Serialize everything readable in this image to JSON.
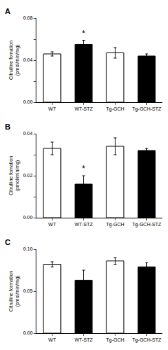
{
  "chart_data": [
    {
      "type": "bar",
      "title": "A",
      "categories": [
        "WT",
        "WT-STZ",
        "Tg-GCH",
        "Tg-GCH-STZ"
      ],
      "values": [
        0.046,
        0.055,
        0.047,
        0.044
      ],
      "errors": [
        0.002,
        0.004,
        0.005,
        0.002
      ],
      "colors": [
        "white",
        "black",
        "white",
        "black"
      ],
      "ylabel": "Citrulline fomation\n(pmol/min/mg)",
      "ylim": [
        0,
        0.08
      ],
      "yticks": [
        {
          "value": 0,
          "label": "0.00"
        },
        {
          "value": 0.02,
          "label": ""
        },
        0.04,
        {
          "value": 0.06,
          "label": ""
        },
        0.08
      ],
      "grid": false,
      "annotations": [
        {
          "text": "*",
          "category": "WT-STZ"
        }
      ]
    },
    {
      "type": "bar",
      "title": "B",
      "categories": [
        "WT",
        "WT-STZ",
        "Tg-GCH",
        "Tg-GCH-STZ"
      ],
      "values": [
        0.033,
        0.016,
        0.034,
        0.032
      ],
      "errors": [
        0.003,
        0.004,
        0.004,
        0.001
      ],
      "colors": [
        "white",
        "black",
        "white",
        "black"
      ],
      "ylabel": "Citrulline fomation\n(pmol/min/mg)",
      "ylim": [
        0,
        0.04
      ],
      "yticks": [
        {
          "value": 0,
          "label": "0.00"
        },
        {
          "value": 0.01,
          "label": ""
        },
        0.02,
        {
          "value": 0.03,
          "label": ""
        },
        0.04
      ],
      "grid": false,
      "annotations": [
        {
          "text": "*",
          "category": "WT-STZ"
        }
      ]
    },
    {
      "type": "bar",
      "title": "C",
      "categories": [
        "WT",
        "WT-STZ",
        "Tg-GCH",
        "Tg-GCH-STZ"
      ],
      "values": [
        0.082,
        0.063,
        0.086,
        0.079
      ],
      "errors": [
        0.003,
        0.012,
        0.004,
        0.005
      ],
      "colors": [
        "white",
        "black",
        "white",
        "black"
      ],
      "ylabel": "Citrulline formation\n(pmol/min/mg)",
      "ylim": [
        0,
        0.1
      ],
      "yticks": [
        {
          "value": 0,
          "label": "0.00"
        },
        0.05,
        {
          "value": 0.1,
          "label": "0.10"
        }
      ],
      "grid": false
    }
  ]
}
